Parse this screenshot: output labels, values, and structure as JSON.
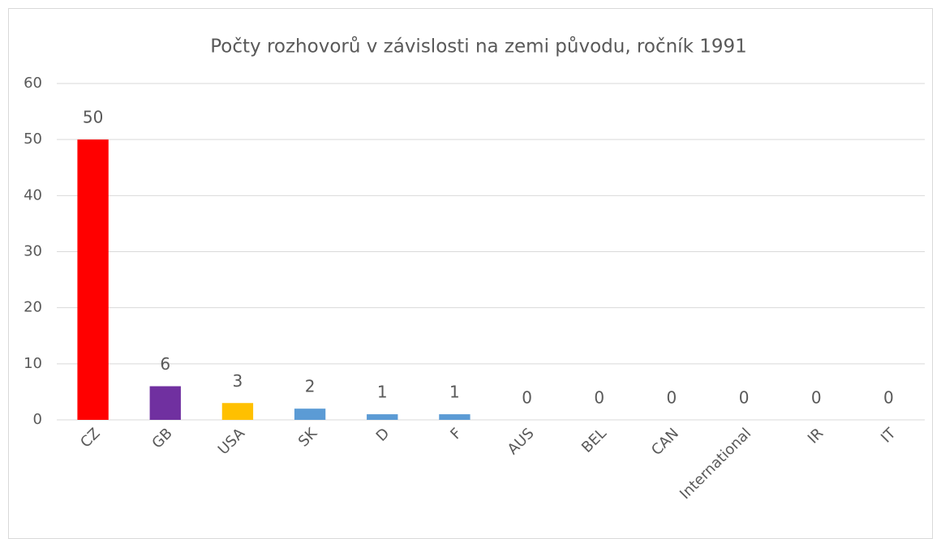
{
  "chart_data": {
    "type": "bar",
    "title": "Počty rozhovorů v závislosti na zemi původu, ročník 1991",
    "categories": [
      "CZ",
      "GB",
      "USA",
      "SK",
      "D",
      "F",
      "AUS",
      "BEL",
      "CAN",
      "International",
      "IR",
      "IT"
    ],
    "values": [
      50,
      6,
      3,
      2,
      1,
      1,
      0,
      0,
      0,
      0,
      0,
      0
    ],
    "colors": [
      "#ff0000",
      "#7030a0",
      "#ffc000",
      "#5b9bd5",
      "#5b9bd5",
      "#5b9bd5",
      "#5b9bd5",
      "#5b9bd5",
      "#5b9bd5",
      "#5b9bd5",
      "#5b9bd5",
      "#5b9bd5"
    ],
    "ylim": [
      0,
      60
    ],
    "yticks": [
      0,
      10,
      20,
      30,
      40,
      50,
      60
    ],
    "grid": true
  }
}
